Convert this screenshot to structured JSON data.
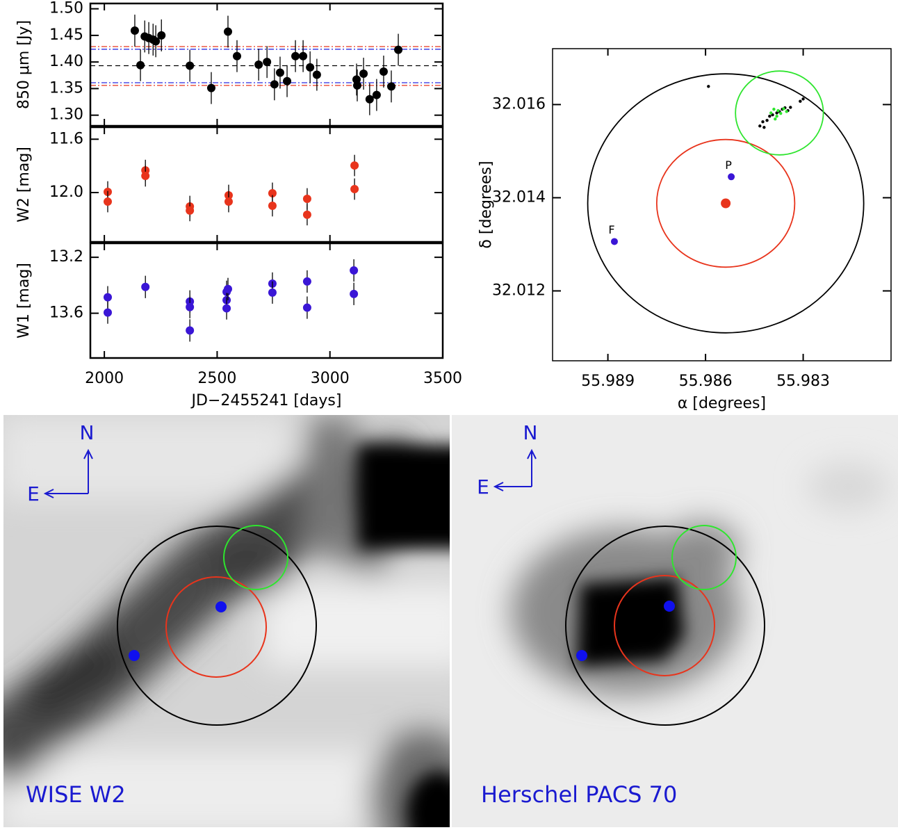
{
  "chart_data": [
    {
      "type": "errorbar",
      "ylabel": "850 μm [Jy]",
      "xlim": [
        1938,
        3500
      ],
      "xticks": [
        2000,
        2500,
        3000,
        3500
      ],
      "ylim": [
        1.28,
        1.51
      ],
      "yticks": [
        {
          "value": 1.3,
          "label": "1.30"
        },
        1.35,
        {
          "value": 1.4,
          "label": "1.40"
        },
        1.45,
        {
          "value": 1.5,
          "label": "1.50"
        }
      ],
      "hlines": [
        {
          "value": 1.393,
          "color": "#000000",
          "style": "dashed"
        },
        {
          "value": 1.424,
          "color": "#2a2ae0",
          "style": "dashdot"
        },
        {
          "value": 1.361,
          "color": "#2a2ae0",
          "style": "dashdot"
        },
        {
          "value": 1.429,
          "color": "#e8341c",
          "style": "dashdot"
        },
        {
          "value": 1.356,
          "color": "#e8341c",
          "style": "dashdot"
        }
      ],
      "series": [
        {
          "color": "#000000",
          "x": [
            2135,
            2160,
            2179,
            2197,
            2216,
            2228,
            2253,
            2379,
            2474,
            2548,
            2588,
            2684,
            2721,
            2754,
            2779,
            2810,
            2847,
            2881,
            2912,
            2942,
            3118,
            3121,
            3149,
            3176,
            3207,
            3238,
            3272,
            3303
          ],
          "values": [
            1.459,
            1.394,
            1.448,
            1.445,
            1.442,
            1.439,
            1.45,
            1.393,
            1.351,
            1.457,
            1.411,
            1.395,
            1.4,
            1.358,
            1.38,
            1.364,
            1.411,
            1.411,
            1.39,
            1.376,
            1.367,
            1.356,
            1.378,
            1.33,
            1.338,
            1.382,
            1.354,
            1.423
          ],
          "errors": [
            0.03,
            0.03,
            0.03,
            0.03,
            0.03,
            0.03,
            0.03,
            0.03,
            0.03,
            0.03,
            0.03,
            0.03,
            0.03,
            0.03,
            0.03,
            0.03,
            0.03,
            0.03,
            0.03,
            0.03,
            0.03,
            0.03,
            0.03,
            0.03,
            0.03,
            0.03,
            0.03,
            0.03
          ]
        }
      ]
    },
    {
      "type": "errorbar",
      "ylabel": "W2 [mag]",
      "y_inverted": true,
      "xlim": [
        1938,
        3500
      ],
      "xticks": [
        2000,
        2500,
        3000,
        3500
      ],
      "ylim": [
        11.51,
        12.37
      ],
      "yticks": [
        11.6,
        {
          "value": 12.0,
          "label": "12.0"
        }
      ],
      "series": [
        {
          "color": "#e8341c",
          "x": [
            2015,
            2015,
            2182,
            2182,
            2379,
            2379,
            2551,
            2551,
            2745,
            2745,
            2899,
            2899,
            3109,
            3109
          ],
          "values": [
            11.995,
            12.068,
            11.834,
            11.875,
            12.104,
            12.135,
            12.021,
            12.068,
            12.005,
            12.099,
            12.047,
            12.166,
            11.797,
            11.974
          ],
          "errors": [
            0.08,
            0.08,
            0.08,
            0.08,
            0.08,
            0.08,
            0.08,
            0.08,
            0.08,
            0.08,
            0.08,
            0.08,
            0.08,
            0.08
          ]
        }
      ]
    },
    {
      "type": "errorbar",
      "ylabel": "W1 [mag]",
      "xlabel": "JD−2455241 [days]",
      "y_inverted": true,
      "xlim": [
        1938,
        3500
      ],
      "xticks": [
        2000,
        2500,
        3000,
        3500
      ],
      "ylim": [
        13.1,
        13.92
      ],
      "yticks": [
        13.2,
        13.6
      ],
      "series": [
        {
          "color": "#3a16d6",
          "x": [
            2015,
            2015,
            2182,
            2379,
            2379,
            2379,
            2542,
            2542,
            2542,
            2548,
            2745,
            2745,
            2899,
            2899,
            3106,
            3106
          ],
          "values": [
            13.486,
            13.595,
            13.412,
            13.516,
            13.556,
            13.723,
            13.447,
            13.506,
            13.565,
            13.427,
            13.388,
            13.452,
            13.373,
            13.56,
            13.294,
            13.462
          ],
          "errors": [
            0.08,
            0.08,
            0.08,
            0.08,
            0.08,
            0.08,
            0.08,
            0.08,
            0.08,
            0.08,
            0.08,
            0.08,
            0.08,
            0.08,
            0.08,
            0.08
          ]
        }
      ]
    },
    {
      "type": "scatter",
      "xlabel": "α [degrees]",
      "ylabel": "δ [degrees]",
      "x_inverted": true,
      "xlim": [
        55.9803,
        55.9907
      ],
      "xticks": [
        55.989,
        55.986,
        55.983
      ],
      "ylim": [
        32.0105,
        32.0172
      ],
      "yticks": [
        32.012,
        32.014,
        32.016
      ],
      "circles": [
        {
          "color": "#000000",
          "center": [
            55.98538,
            32.01388
          ],
          "radius": [
            0.00424,
            0.00278
          ]
        },
        {
          "color": "#e8341c",
          "center": [
            55.98538,
            32.01388
          ],
          "radius": [
            0.00212,
            0.00137
          ]
        },
        {
          "color": "#2ee52e",
          "center": [
            55.98373,
            32.01582
          ],
          "radius": [
            0.00135,
            0.0009
          ]
        }
      ],
      "series": [
        {
          "color": "#000000",
          "x": [
            55.98591,
            55.98433,
            55.98424,
            55.98411,
            55.98403,
            55.98394,
            55.98381,
            55.98373,
            55.98364,
            55.98356,
            55.98347,
            55.98339,
            55.98309,
            55.983,
            55.9842
          ],
          "values": [
            32.01639,
            32.01554,
            32.01563,
            32.01566,
            32.01575,
            32.01578,
            32.01582,
            32.01585,
            32.0159,
            32.01593,
            32.01587,
            32.01594,
            32.01607,
            32.01612,
            32.01551
          ]
        },
        {
          "color": "#2ee52e",
          "x": [
            55.98399,
            55.9839,
            55.98381,
            55.98377,
            55.98369,
            55.9836,
            55.98386,
            55.98351
          ],
          "values": [
            32.01582,
            32.0159,
            32.01575,
            32.01587,
            32.01581,
            32.01591,
            32.01569,
            32.01585
          ]
        }
      ],
      "markers": [
        {
          "color": "#e8341c",
          "x": 55.98538,
          "y": 32.01388
        },
        {
          "color": "#3a16d6",
          "x": 55.98521,
          "y": 32.01445,
          "label": "P"
        },
        {
          "color": "#3a16d6",
          "x": 55.9888,
          "y": 32.01306,
          "label": "F"
        }
      ]
    }
  ],
  "images": [
    {
      "label": "WISE W2",
      "north": "N",
      "east": "E"
    },
    {
      "label": "Herschel PACS 70",
      "north": "N",
      "east": "E"
    }
  ]
}
